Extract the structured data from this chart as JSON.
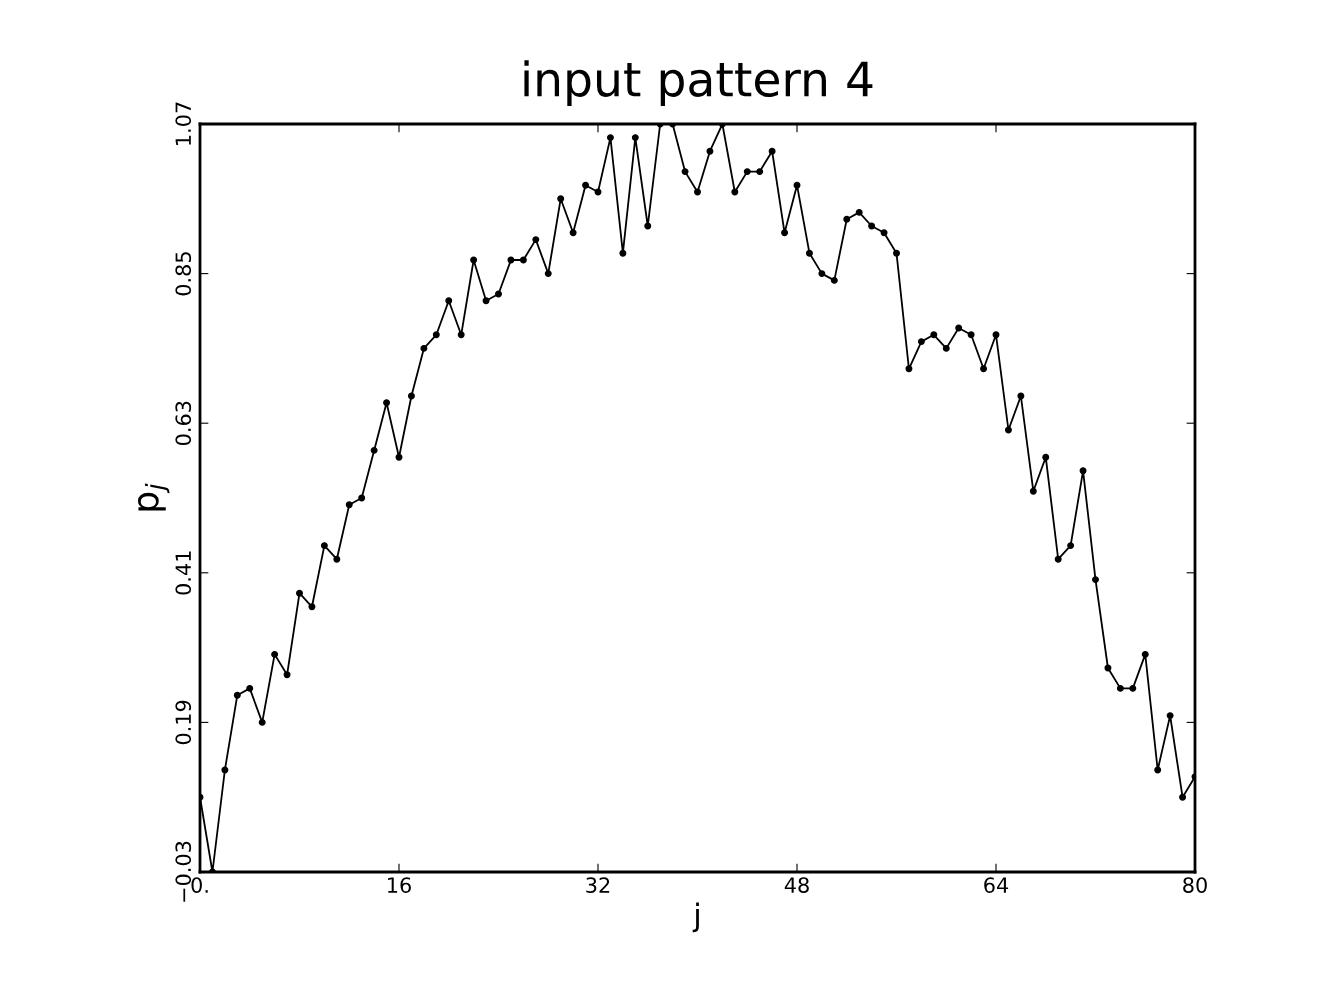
{
  "chart_data": {
    "type": "line",
    "title": "input pattern 4",
    "xlabel": "j",
    "ylabel": "p$_{j}$",
    "x": [
      0,
      1,
      2,
      3,
      4,
      5,
      6,
      7,
      8,
      9,
      10,
      11,
      12,
      13,
      14,
      15,
      16,
      17,
      18,
      19,
      20,
      21,
      22,
      23,
      24,
      25,
      26,
      27,
      28,
      29,
      30,
      31,
      32,
      33,
      34,
      35,
      36,
      37,
      38,
      39,
      40,
      41,
      42,
      43,
      44,
      45,
      46,
      47,
      48,
      49,
      50,
      51,
      52,
      53,
      54,
      55,
      56,
      57,
      58,
      59,
      60,
      61,
      62,
      63,
      64,
      65,
      66,
      67,
      68,
      69,
      70,
      71,
      72,
      73,
      74,
      75,
      76,
      77,
      78,
      79,
      80
    ],
    "series": [
      {
        "color": "#000000",
        "values": [
          0.08,
          -0.03,
          0.12,
          0.23,
          0.24,
          0.19,
          0.29,
          0.26,
          0.38,
          0.36,
          0.45,
          0.43,
          0.51,
          0.52,
          0.59,
          0.66,
          0.58,
          0.67,
          0.74,
          0.76,
          0.81,
          0.76,
          0.87,
          0.81,
          0.82,
          0.87,
          0.87,
          0.9,
          0.85,
          0.96,
          0.91,
          0.98,
          0.97,
          1.05,
          0.88,
          1.05,
          0.92,
          1.07,
          1.07,
          1.0,
          0.97,
          1.03,
          1.07,
          0.97,
          1.0,
          1.0,
          1.03,
          0.91,
          0.98,
          0.88,
          0.85,
          0.84,
          0.93,
          0.94,
          0.92,
          0.91,
          0.88,
          0.71,
          0.75,
          0.76,
          0.74,
          0.77,
          0.76,
          0.71,
          0.76,
          0.62,
          0.67,
          0.53,
          0.58,
          0.43,
          0.45,
          0.56,
          0.4,
          0.27,
          0.24,
          0.24,
          0.29,
          0.12,
          0.2,
          0.08,
          0.11
        ]
      }
    ],
    "xlim": [
      0,
      80
    ],
    "xticks": [
      {
        "value": 0,
        "label": "0."
      },
      16,
      32,
      48,
      64,
      80
    ],
    "ylim": [
      -0.03,
      1.07
    ],
    "yticks": [
      {
        "value": -0.03,
        "label": "−0.03"
      },
      0.19,
      0.41,
      0.63,
      0.85,
      1.07
    ],
    "grid": false,
    "marker": "circle",
    "line_style": "solid"
  }
}
